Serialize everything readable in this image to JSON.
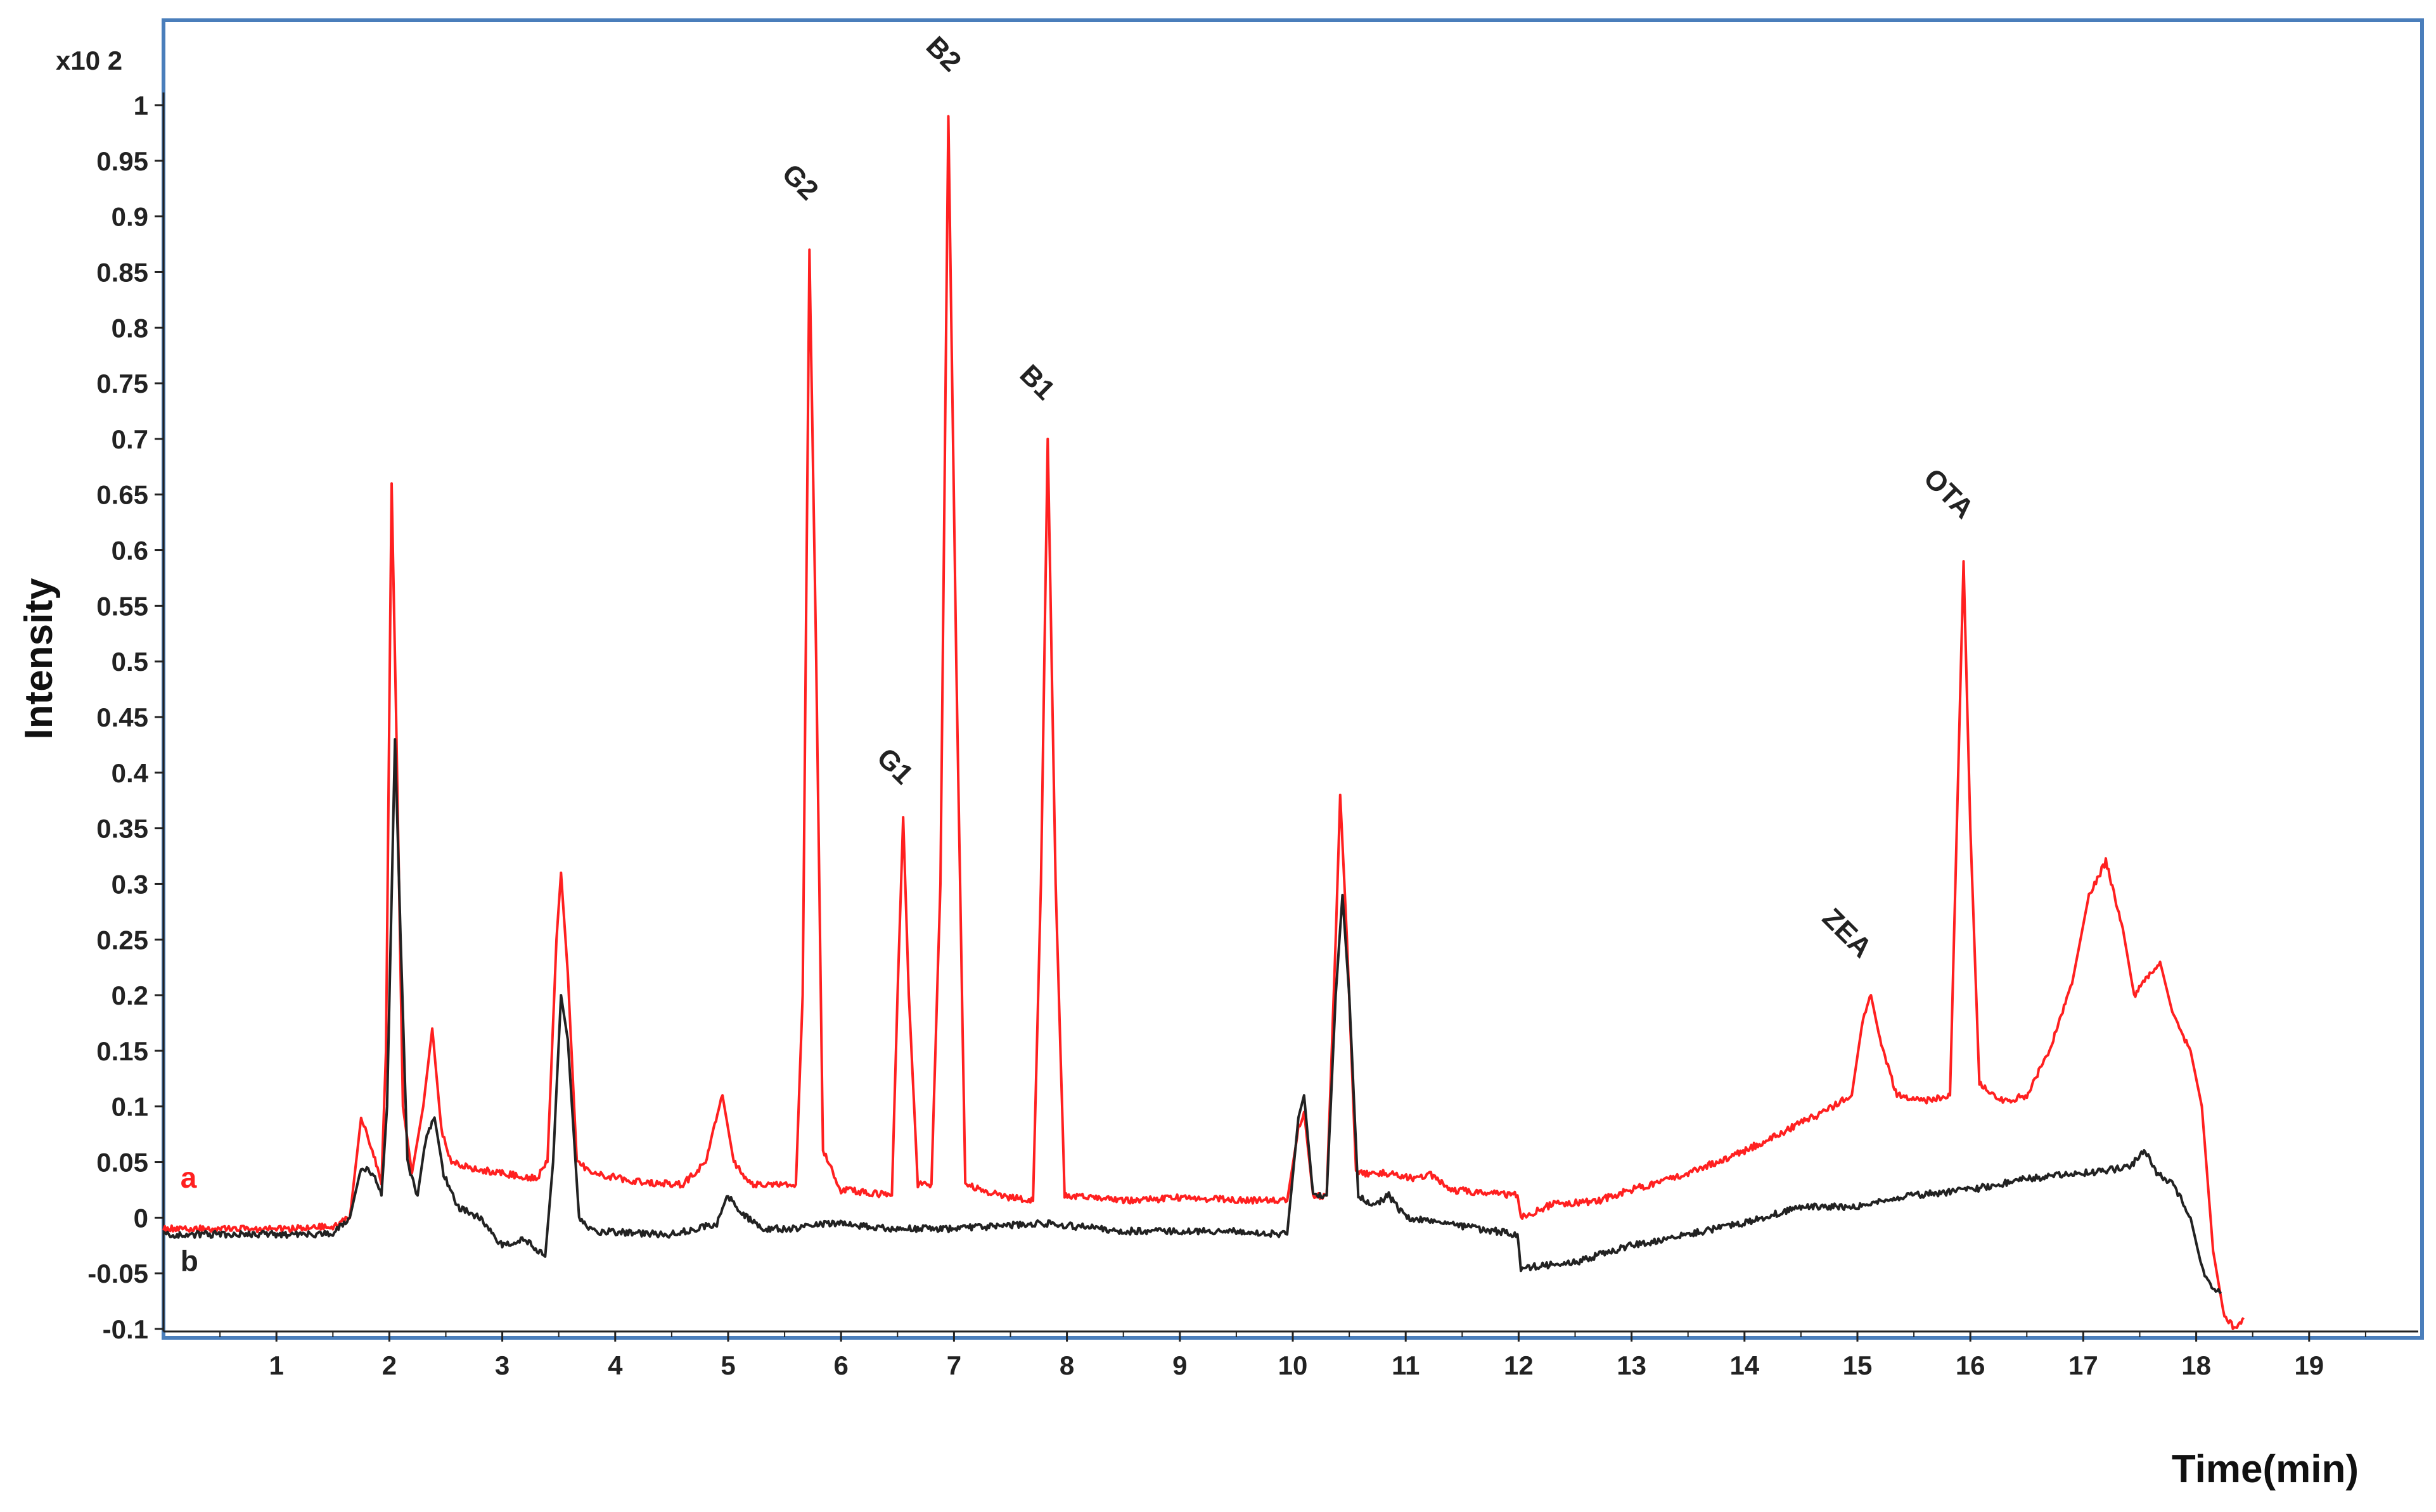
{
  "chart_data": {
    "type": "line",
    "title": "",
    "xlabel": "Time(min)",
    "ylabel": "Intensity",
    "y_multiplier": "x10 2",
    "xlim": [
      0,
      20
    ],
    "ylim": [
      -0.1,
      1.05
    ],
    "x_ticks": [
      "1",
      "2",
      "3",
      "4",
      "5",
      "6",
      "7",
      "8",
      "9",
      "10",
      "11",
      "12",
      "13",
      "14",
      "15",
      "16",
      "17",
      "18",
      "19"
    ],
    "y_ticks": [
      "-0.1",
      "-0.05",
      "0",
      "0.05",
      "0.1",
      "0.15",
      "0.2",
      "0.25",
      "0.3",
      "0.35",
      "0.4",
      "0.45",
      "0.5",
      "0.55",
      "0.6",
      "0.65",
      "0.7",
      "0.75",
      "0.8",
      "0.85",
      "0.9",
      "0.95",
      "1"
    ],
    "grid": false,
    "frame_color": "#4a7ebb",
    "series": [
      {
        "name": "a",
        "color": "#ff2020",
        "points": [
          [
            0.0,
            -0.01
          ],
          [
            1.0,
            -0.01
          ],
          [
            1.5,
            -0.008
          ],
          [
            1.65,
            0.0
          ],
          [
            1.75,
            0.09
          ],
          [
            1.85,
            0.06
          ],
          [
            1.93,
            0.03
          ],
          [
            1.97,
            0.15
          ],
          [
            2.02,
            0.66
          ],
          [
            2.06,
            0.45
          ],
          [
            2.12,
            0.1
          ],
          [
            2.2,
            0.04
          ],
          [
            2.3,
            0.1
          ],
          [
            2.38,
            0.17
          ],
          [
            2.46,
            0.08
          ],
          [
            2.55,
            0.05
          ],
          [
            2.7,
            0.045
          ],
          [
            3.0,
            0.04
          ],
          [
            3.3,
            0.035
          ],
          [
            3.4,
            0.05
          ],
          [
            3.48,
            0.25
          ],
          [
            3.52,
            0.31
          ],
          [
            3.58,
            0.22
          ],
          [
            3.66,
            0.05
          ],
          [
            3.8,
            0.04
          ],
          [
            4.2,
            0.032
          ],
          [
            4.6,
            0.03
          ],
          [
            4.8,
            0.05
          ],
          [
            4.95,
            0.11
          ],
          [
            5.05,
            0.05
          ],
          [
            5.2,
            0.03
          ],
          [
            5.5,
            0.03
          ],
          [
            5.6,
            0.03
          ],
          [
            5.66,
            0.2
          ],
          [
            5.72,
            0.87
          ],
          [
            5.78,
            0.5
          ],
          [
            5.84,
            0.06
          ],
          [
            6.0,
            0.025
          ],
          [
            6.3,
            0.022
          ],
          [
            6.45,
            0.02
          ],
          [
            6.5,
            0.2
          ],
          [
            6.55,
            0.36
          ],
          [
            6.6,
            0.2
          ],
          [
            6.68,
            0.03
          ],
          [
            6.8,
            0.03
          ],
          [
            6.88,
            0.3
          ],
          [
            6.95,
            0.99
          ],
          [
            7.02,
            0.5
          ],
          [
            7.1,
            0.03
          ],
          [
            7.4,
            0.02
          ],
          [
            7.7,
            0.015
          ],
          [
            7.77,
            0.3
          ],
          [
            7.83,
            0.7
          ],
          [
            7.9,
            0.3
          ],
          [
            7.98,
            0.02
          ],
          [
            8.5,
            0.015
          ],
          [
            9.0,
            0.018
          ],
          [
            9.5,
            0.016
          ],
          [
            9.95,
            0.015
          ],
          [
            10.05,
            0.08
          ],
          [
            10.1,
            0.095
          ],
          [
            10.18,
            0.02
          ],
          [
            10.3,
            0.02
          ],
          [
            10.38,
            0.25
          ],
          [
            10.42,
            0.38
          ],
          [
            10.48,
            0.25
          ],
          [
            10.56,
            0.04
          ],
          [
            10.8,
            0.04
          ],
          [
            11.1,
            0.035
          ],
          [
            11.2,
            0.04
          ],
          [
            11.4,
            0.025
          ],
          [
            11.99,
            0.02
          ],
          [
            12.02,
            0.0
          ],
          [
            12.3,
            0.012
          ],
          [
            12.7,
            0.015
          ],
          [
            13.0,
            0.025
          ],
          [
            13.5,
            0.04
          ],
          [
            14.0,
            0.06
          ],
          [
            14.3,
            0.075
          ],
          [
            14.7,
            0.095
          ],
          [
            14.95,
            0.11
          ],
          [
            15.05,
            0.18
          ],
          [
            15.12,
            0.2
          ],
          [
            15.2,
            0.16
          ],
          [
            15.35,
            0.11
          ],
          [
            15.6,
            0.105
          ],
          [
            15.82,
            0.11
          ],
          [
            15.88,
            0.35
          ],
          [
            15.94,
            0.59
          ],
          [
            16.0,
            0.35
          ],
          [
            16.08,
            0.12
          ],
          [
            16.3,
            0.105
          ],
          [
            16.5,
            0.11
          ],
          [
            16.7,
            0.15
          ],
          [
            16.9,
            0.21
          ],
          [
            17.05,
            0.29
          ],
          [
            17.2,
            0.32
          ],
          [
            17.35,
            0.26
          ],
          [
            17.45,
            0.2
          ],
          [
            17.6,
            0.22
          ],
          [
            17.68,
            0.23
          ],
          [
            17.8,
            0.18
          ],
          [
            17.95,
            0.15
          ],
          [
            18.05,
            0.1
          ],
          [
            18.15,
            -0.03
          ],
          [
            18.25,
            -0.09
          ],
          [
            18.35,
            -0.1
          ],
          [
            18.42,
            -0.09
          ]
        ]
      },
      {
        "name": "b",
        "color": "#222222",
        "points": [
          [
            0.0,
            -0.015
          ],
          [
            1.5,
            -0.015
          ],
          [
            1.65,
            0.0
          ],
          [
            1.75,
            0.045
          ],
          [
            1.85,
            0.04
          ],
          [
            1.93,
            0.02
          ],
          [
            1.98,
            0.1
          ],
          [
            2.05,
            0.43
          ],
          [
            2.1,
            0.25
          ],
          [
            2.16,
            0.05
          ],
          [
            2.25,
            0.02
          ],
          [
            2.32,
            0.07
          ],
          [
            2.4,
            0.09
          ],
          [
            2.48,
            0.04
          ],
          [
            2.6,
            0.01
          ],
          [
            2.8,
            0.0
          ],
          [
            3.0,
            -0.025
          ],
          [
            3.2,
            -0.02
          ],
          [
            3.38,
            -0.035
          ],
          [
            3.45,
            0.05
          ],
          [
            3.52,
            0.2
          ],
          [
            3.58,
            0.16
          ],
          [
            3.68,
            0.0
          ],
          [
            3.8,
            -0.012
          ],
          [
            4.5,
            -0.015
          ],
          [
            4.9,
            -0.005
          ],
          [
            5.0,
            0.02
          ],
          [
            5.1,
            0.005
          ],
          [
            5.3,
            -0.01
          ],
          [
            5.6,
            -0.01
          ],
          [
            5.9,
            -0.005
          ],
          [
            6.5,
            -0.01
          ],
          [
            7.0,
            -0.01
          ],
          [
            7.8,
            -0.005
          ],
          [
            8.5,
            -0.012
          ],
          [
            9.5,
            -0.012
          ],
          [
            9.95,
            -0.015
          ],
          [
            10.05,
            0.09
          ],
          [
            10.1,
            0.11
          ],
          [
            10.18,
            0.02
          ],
          [
            10.3,
            0.02
          ],
          [
            10.38,
            0.2
          ],
          [
            10.44,
            0.29
          ],
          [
            10.5,
            0.2
          ],
          [
            10.58,
            0.02
          ],
          [
            10.7,
            0.01
          ],
          [
            10.85,
            0.02
          ],
          [
            11.0,
            0.0
          ],
          [
            11.3,
            -0.005
          ],
          [
            11.99,
            -0.015
          ],
          [
            12.02,
            -0.045
          ],
          [
            12.5,
            -0.04
          ],
          [
            13.0,
            -0.025
          ],
          [
            13.5,
            -0.015
          ],
          [
            14.0,
            -0.005
          ],
          [
            14.5,
            0.01
          ],
          [
            15.0,
            0.01
          ],
          [
            15.5,
            0.02
          ],
          [
            16.0,
            0.025
          ],
          [
            16.5,
            0.035
          ],
          [
            17.0,
            0.04
          ],
          [
            17.4,
            0.045
          ],
          [
            17.55,
            0.06
          ],
          [
            17.65,
            0.04
          ],
          [
            17.8,
            0.03
          ],
          [
            17.95,
            0.0
          ],
          [
            18.05,
            -0.045
          ],
          [
            18.15,
            -0.065
          ],
          [
            18.22,
            -0.068
          ]
        ]
      }
    ],
    "annotations": [
      {
        "text": "G2",
        "x": 5.58,
        "y": 0.925,
        "rotate": 45
      },
      {
        "text": "B2",
        "x": 6.85,
        "y": 1.04,
        "rotate": 45
      },
      {
        "text": "B1",
        "x": 7.68,
        "y": 0.745,
        "rotate": 45
      },
      {
        "text": "G1",
        "x": 6.42,
        "y": 0.4,
        "rotate": 45
      },
      {
        "text": "ZEA",
        "x": 14.85,
        "y": 0.25,
        "rotate": 45
      },
      {
        "text": "OTA",
        "x": 15.75,
        "y": 0.645,
        "rotate": 45
      }
    ],
    "series_labels": [
      {
        "text": "a",
        "color": "#ff2020",
        "x": 0.15,
        "y": 0.035
      },
      {
        "text": "b",
        "color": "#222222",
        "x": 0.15,
        "y": -0.04
      }
    ]
  }
}
